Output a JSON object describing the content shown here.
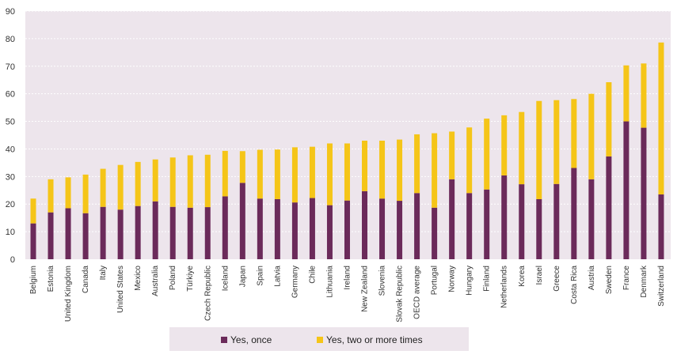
{
  "chart_data": {
    "type": "bar",
    "stacked": true,
    "title": "",
    "xlabel": "",
    "ylabel": "",
    "ylim": [
      0,
      90
    ],
    "yticks": [
      0,
      10,
      20,
      30,
      40,
      50,
      60,
      70,
      80,
      90
    ],
    "grid": true,
    "legend_position": "bottom-center",
    "categories": [
      "Belgium",
      "Estonia",
      "United Kingdom",
      "Canada",
      "Italy",
      "United States",
      "Mexico",
      "Australia",
      "Poland",
      "Türkiye",
      "Czech Republic",
      "Iceland",
      "Japan",
      "Spain",
      "Latvia",
      "Germany",
      "Chile",
      "Lithuania",
      "Ireland",
      "New Zealand",
      "Slovenia",
      "Slovak Republic",
      "OECD average",
      "Portugal",
      "Norway",
      "Hungary",
      "Finland",
      "Netherlands",
      "Korea",
      "Israel",
      "Greece",
      "Costa Rica",
      "Austria",
      "Sweden",
      "France",
      "Denmark",
      "Switzerland"
    ],
    "series": [
      {
        "name": "Yes, once",
        "color": "#6b2a5a",
        "values": [
          13,
          17,
          18.5,
          16.7,
          19,
          18,
          19.3,
          21,
          19,
          18.7,
          18.9,
          22.8,
          27.7,
          22,
          21.8,
          20.6,
          22.2,
          19.6,
          21.3,
          24.7,
          22,
          21.2,
          24,
          18.7,
          29,
          24,
          25.3,
          30.4,
          27.2,
          21.8,
          27.3,
          33.1,
          29,
          37.3,
          50,
          47.7,
          23.5
        ]
      },
      {
        "name": "Yes, two or more times",
        "color": "#f5c518",
        "values": [
          9,
          12,
          11.2,
          14,
          13.8,
          16.2,
          16,
          15.2,
          17.9,
          19,
          19,
          16.5,
          11.5,
          17.7,
          18,
          20,
          18.6,
          22.4,
          20.7,
          18.3,
          21,
          22.2,
          21.3,
          27,
          17.3,
          23.8,
          25.7,
          21.8,
          26.2,
          35.6,
          30.4,
          25,
          31,
          26.9,
          20.3,
          23.3,
          55.1
        ]
      }
    ]
  }
}
